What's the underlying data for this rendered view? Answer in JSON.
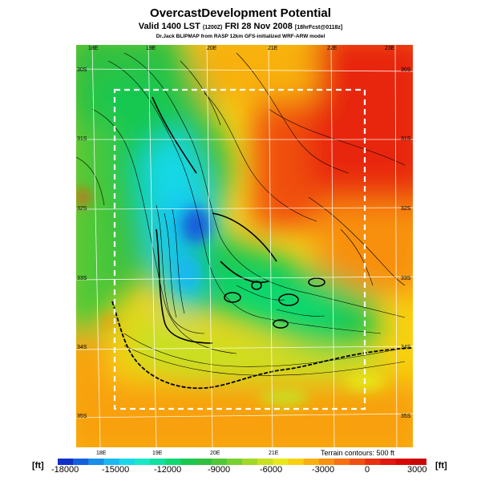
{
  "header": {
    "title": "OvercastDevelopment Potential",
    "subtitle_main": "Valid 1400 LST",
    "subtitle_small1": "(1200Z)",
    "subtitle_date": "FRI 28 Nov 2008",
    "subtitle_small2": "[18hrFcst@0118z]",
    "credit": "Dr.Jack BLIPMAP from RASP 12km GFS-initialized WRF-ARW model"
  },
  "map": {
    "lon_labels_top": [
      "18E",
      "19E",
      "20E",
      "21E",
      "22E",
      "23E"
    ],
    "lon_labels_bottom": [
      "18E",
      "19E",
      "20E",
      "21E"
    ],
    "lat_labels_left": [
      "30S",
      "31S",
      "32S",
      "33S",
      "34S",
      "35S"
    ],
    "lat_labels_right": [
      "30S",
      "31S",
      "32S",
      "33S",
      "34S",
      "35S"
    ],
    "terrain_note": "Terrain contours: 500 ft"
  },
  "colorbar": {
    "unit_left": "[ft]",
    "unit_right": "[ft]",
    "tick_labels": [
      "-18000",
      "-15000",
      "-12000",
      "-9000",
      "-6000",
      "-3000",
      "0",
      "3000"
    ],
    "colors": [
      "#1030c8",
      "#1460dc",
      "#1890e8",
      "#18b8f0",
      "#18d8e8",
      "#18e8c8",
      "#10e0a0",
      "#10d870",
      "#18c850",
      "#30c040",
      "#50c838",
      "#78d030",
      "#a0d828",
      "#c8e020",
      "#e8e818",
      "#f8d010",
      "#f8b010",
      "#f89010",
      "#f87010",
      "#f05010",
      "#e83010",
      "#e01810",
      "#d80808",
      "#c80808"
    ]
  }
}
